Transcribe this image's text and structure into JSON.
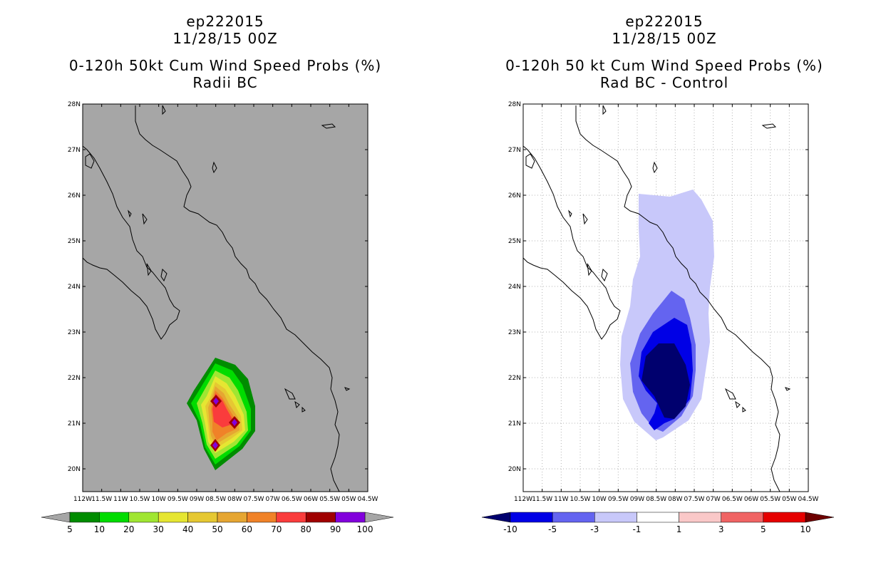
{
  "left_panel": {
    "title_line1": "ep222015",
    "title_line2": "11/28/15 00Z",
    "title_line3": "0-120h 50kt Cum Wind Speed Probs (%)",
    "title_line4": "Radii BC"
  },
  "right_panel": {
    "title_line1": "ep222015",
    "title_line2": "11/28/15 00Z",
    "title_line3": "0-120h 50 kt Cum Wind Speed Probs (%)",
    "title_line4": "Rad BC - Control"
  },
  "lat_labels": [
    "28N",
    "27N",
    "26N",
    "25N",
    "24N",
    "23N",
    "22N",
    "21N",
    "20N"
  ],
  "lon_labels": [
    "112W",
    "11.5W",
    "11W",
    "10.5W",
    "10W",
    "09.5W",
    "09W",
    "08.5W",
    "08W",
    "07.5W",
    "07W",
    "06.5W",
    "06W",
    "05.5W",
    "05W",
    "04.5W"
  ],
  "left_colorbar": {
    "colors": [
      "#008c00",
      "#00dc00",
      "#a0e632",
      "#e6e632",
      "#e6c832",
      "#e6a632",
      "#f08228",
      "#fa3c3c",
      "#a00000",
      "#8200dc"
    ],
    "under_color": "#a6a6a6",
    "over_color": "#a6a6a6",
    "labels": [
      "5",
      "10",
      "20",
      "30",
      "40",
      "50",
      "60",
      "70",
      "80",
      "90",
      "100"
    ]
  },
  "right_colorbar": {
    "colors": [
      "#0000e6",
      "#6464f0",
      "#c8c8fa",
      "#ffffff",
      "#fac8c8",
      "#f06464",
      "#e60000"
    ],
    "under_color": "#00006e",
    "over_color": "#6e0000",
    "labels": [
      "-10",
      "-5",
      "-3",
      "-1",
      "1",
      "3",
      "5",
      "10"
    ]
  }
}
